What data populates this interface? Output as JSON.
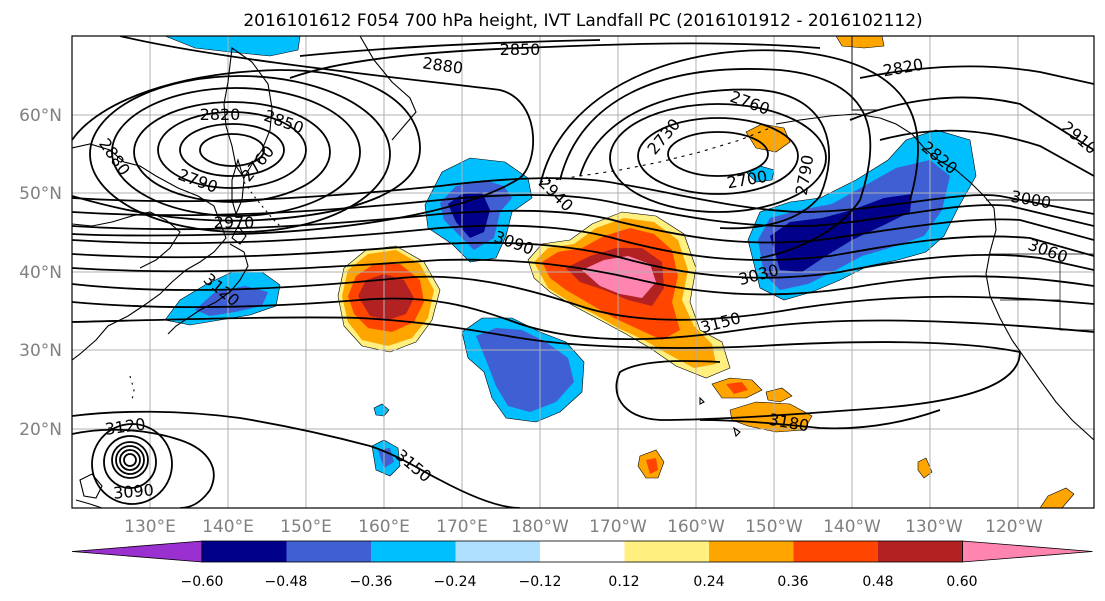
{
  "figure": {
    "title": "2016101612 F054 700 hPa height, IVT Landfall PC (2016101912 - 2016102112)"
  },
  "map": {
    "lat_labels": [
      "60°N",
      "50°N",
      "40°N",
      "30°N",
      "20°N"
    ],
    "lon_labels": [
      "130°E",
      "140°E",
      "150°E",
      "160°E",
      "170°E",
      "180°W",
      "170°W",
      "160°W",
      "150°W",
      "140°W",
      "130°W",
      "120°W"
    ],
    "contour_labels": [
      "2850",
      "2880",
      "2820",
      "2850",
      "2880",
      "2820",
      "2760",
      "2790",
      "2970",
      "2730",
      "2760",
      "2700",
      "2790",
      "2820",
      "2910",
      "2940",
      "3090",
      "3030",
      "3000",
      "3060",
      "3120",
      "3150",
      "3180",
      "3120",
      "3090",
      "3150"
    ]
  },
  "colorbar": {
    "tick_labels": [
      "−0.60",
      "−0.48",
      "−0.36",
      "−0.24",
      "−0.12",
      "0.12",
      "0.24",
      "0.36",
      "0.48",
      "0.60"
    ],
    "colors": [
      "#9b30d0",
      "#00008b",
      "#3f5fd3",
      "#00bfff",
      "#b0e0ff",
      "#ffffff",
      "#fff080",
      "#ffa500",
      "#ff4500",
      "#b22222",
      "#ff85b0"
    ]
  },
  "colors": {
    "grid": "#b0b0b0",
    "coast": "#000000",
    "contour": "#000000",
    "axis_label": "#808080"
  }
}
